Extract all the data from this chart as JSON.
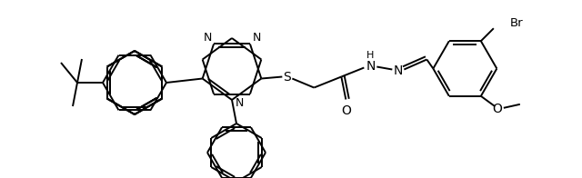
{
  "background_color": "#ffffff",
  "line_color": "#000000",
  "line_width": 1.4,
  "figsize": [
    6.4,
    1.96
  ],
  "dpi": 100,
  "xlim": [
    0,
    640
  ],
  "ylim": [
    0,
    196
  ]
}
